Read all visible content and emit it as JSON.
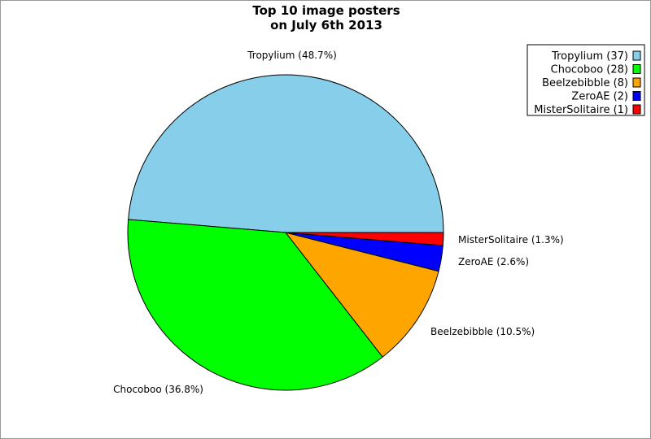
{
  "chart_data": {
    "type": "pie",
    "title_lines": [
      "Top 10 image posters",
      "on July 6th 2013"
    ],
    "slices": [
      {
        "name": "Tropylium",
        "count": 37,
        "percent": 48.7,
        "label": "Tropylium (48.7%)",
        "legend": "Tropylium (37)",
        "color": "#87CEEB"
      },
      {
        "name": "Chocoboo",
        "count": 28,
        "percent": 36.8,
        "label": "Chocoboo (36.8%)",
        "legend": "Chocoboo (28)",
        "color": "#00FF00"
      },
      {
        "name": "Beelzebibble",
        "count": 8,
        "percent": 10.5,
        "label": "Beelzebibble (10.5%)",
        "legend": "Beelzebibble (8)",
        "color": "#FFA500"
      },
      {
        "name": "ZeroAE",
        "count": 2,
        "percent": 2.6,
        "label": "ZeroAE (2.6%)",
        "legend": "ZeroAE (2)",
        "color": "#0000FF"
      },
      {
        "name": "MisterSolitaire",
        "count": 1,
        "percent": 1.3,
        "label": "MisterSolitaire (1.3%)",
        "legend": "MisterSolitaire (1)",
        "color": "#FF0000"
      }
    ],
    "legend_placement": "top-right"
  }
}
